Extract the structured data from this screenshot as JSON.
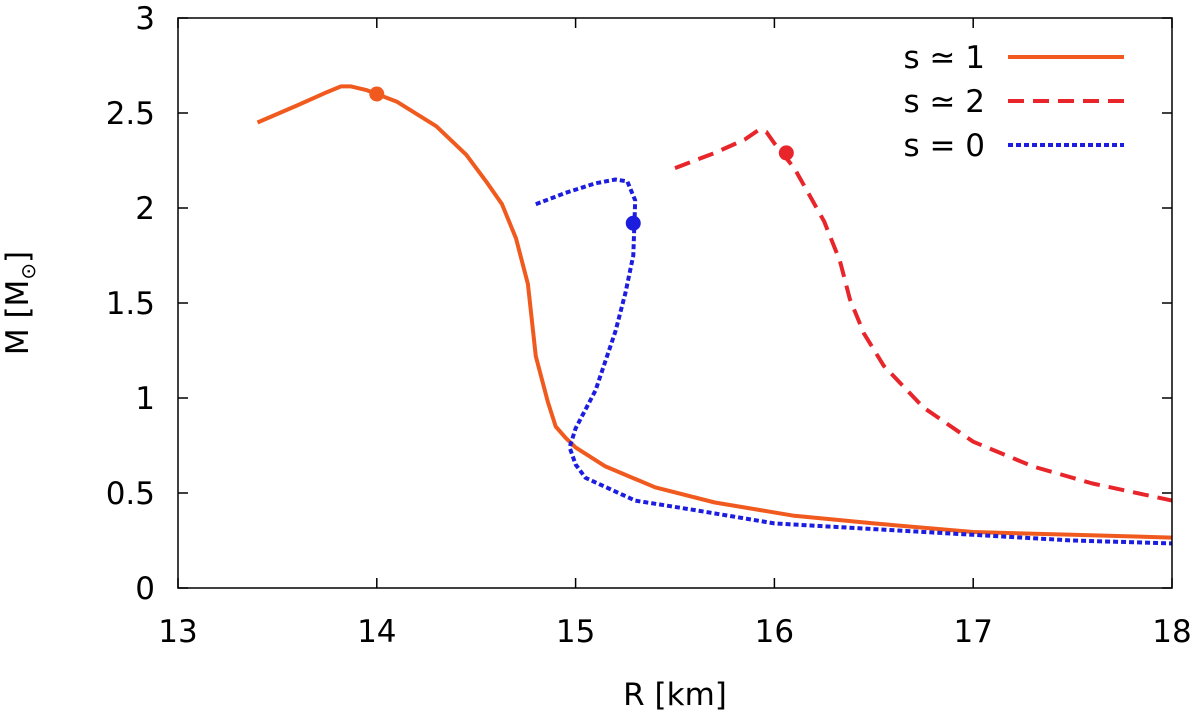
{
  "chart_data": {
    "type": "line",
    "title": "",
    "xlabel": "R [km]",
    "ylabel_main": "M [M",
    "ylabel_symbol": "⊙",
    "ylabel_close": "]",
    "xlim": [
      13,
      18
    ],
    "ylim": [
      0,
      3
    ],
    "xticks": [
      13,
      14,
      15,
      16,
      17,
      18
    ],
    "xtick_labels": [
      "13",
      "14",
      "15",
      "16",
      "17",
      "18"
    ],
    "yticks": [
      0,
      0.5,
      1,
      1.5,
      2,
      2.5,
      3
    ],
    "ytick_labels": [
      "0",
      "0.5",
      "1",
      "1.5",
      "2",
      "2.5",
      "3"
    ],
    "grid": false,
    "legend_position": "top-right",
    "series": [
      {
        "name": "s ≃ 1",
        "color": "#f05a1e",
        "dash": "solid",
        "x": [
          13.4,
          13.6,
          13.75,
          13.82,
          13.87,
          13.95,
          14.1,
          14.3,
          14.45,
          14.55,
          14.63,
          14.7,
          14.76,
          14.8,
          14.83,
          14.86,
          14.9,
          14.95,
          15.0,
          15.15,
          15.4,
          15.7,
          16.1,
          16.5,
          17.0,
          17.5,
          18.0
        ],
        "y": [
          2.45,
          2.54,
          2.61,
          2.64,
          2.64,
          2.62,
          2.56,
          2.43,
          2.28,
          2.14,
          2.02,
          1.84,
          1.6,
          1.22,
          1.1,
          0.98,
          0.85,
          0.79,
          0.74,
          0.64,
          0.53,
          0.45,
          0.38,
          0.34,
          0.295,
          0.28,
          0.265
        ]
      },
      {
        "name": "s ≃ 2",
        "color": "#e8252a",
        "dash": "dashed",
        "x": [
          15.5,
          15.7,
          15.85,
          15.92,
          15.96,
          16.0,
          16.1,
          16.25,
          16.33,
          16.38,
          16.45,
          16.55,
          16.75,
          17.0,
          17.3,
          17.6,
          18.0
        ],
        "y": [
          2.21,
          2.29,
          2.36,
          2.41,
          2.4,
          2.34,
          2.21,
          1.93,
          1.72,
          1.52,
          1.34,
          1.17,
          0.95,
          0.77,
          0.64,
          0.55,
          0.46
        ]
      },
      {
        "name": "s = 0",
        "color": "#1d1de0",
        "dash": "dotted",
        "x": [
          14.8,
          14.95,
          15.1,
          15.2,
          15.26,
          15.3,
          15.29,
          15.25,
          15.2,
          15.1,
          15.0,
          14.97,
          15.0,
          15.05,
          15.3,
          15.6,
          16.0,
          16.5,
          17.0,
          17.5,
          18.0
        ],
        "y": [
          2.02,
          2.08,
          2.13,
          2.15,
          2.14,
          2.04,
          1.75,
          1.55,
          1.35,
          1.04,
          0.84,
          0.74,
          0.65,
          0.58,
          0.46,
          0.41,
          0.34,
          0.31,
          0.28,
          0.25,
          0.235
        ]
      }
    ],
    "markers": [
      {
        "series": "s ≃ 1",
        "x": 14.0,
        "y": 2.6,
        "color": "#f05a1e"
      },
      {
        "series": "s ≃ 2",
        "x": 16.06,
        "y": 2.29,
        "color": "#e8252a"
      },
      {
        "series": "s = 0",
        "x": 15.29,
        "y": 1.92,
        "color": "#1d1de0"
      }
    ]
  }
}
